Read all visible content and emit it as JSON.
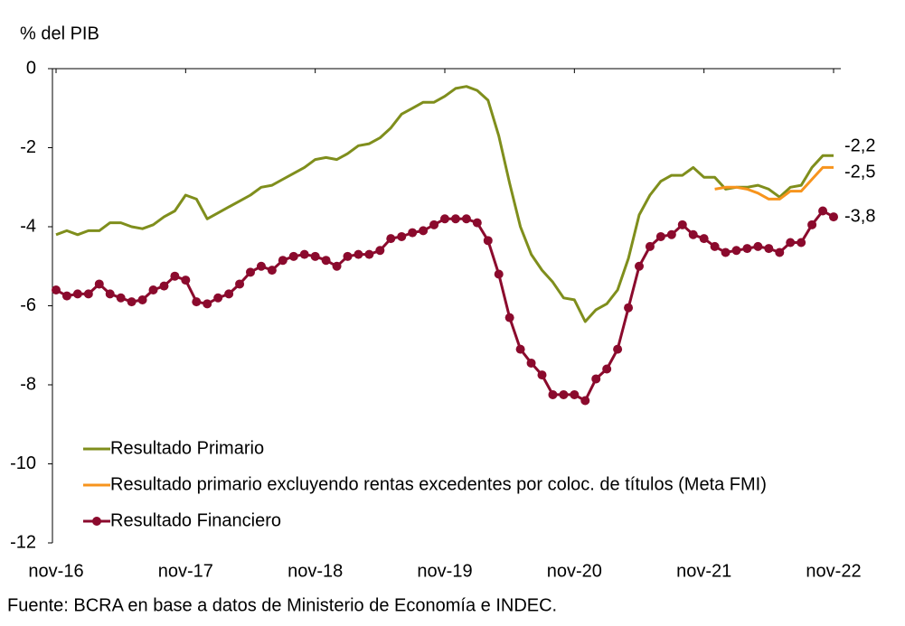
{
  "chart_data": {
    "type": "line",
    "y_label": "% del PIB",
    "source": "Fuente: BCRA en base a datos de Ministerio de Economía e INDEC.",
    "categories": [
      "nov-16",
      null,
      null,
      null,
      null,
      null,
      null,
      null,
      null,
      null,
      null,
      null,
      "nov-17",
      null,
      null,
      null,
      null,
      null,
      null,
      null,
      null,
      null,
      null,
      null,
      "nov-18",
      null,
      null,
      null,
      null,
      null,
      null,
      null,
      null,
      null,
      null,
      null,
      "nov-19",
      null,
      null,
      null,
      null,
      null,
      null,
      null,
      null,
      null,
      null,
      null,
      "nov-20",
      null,
      null,
      null,
      null,
      null,
      null,
      null,
      null,
      null,
      null,
      null,
      "nov-21",
      null,
      null,
      null,
      null,
      null,
      null,
      null,
      null,
      null,
      null,
      null,
      "nov-22"
    ],
    "ylim": [
      -12,
      0
    ],
    "yticks": [
      0,
      -2,
      -4,
      -6,
      -8,
      -10,
      -12
    ],
    "legend": "lower left",
    "series": [
      {
        "name": "Resultado Primario",
        "color": "#7f8e1c",
        "marker": null,
        "values": [
          -4.2,
          -4.1,
          -4.2,
          -4.1,
          -4.1,
          -3.9,
          -3.9,
          -4.0,
          -4.05,
          -3.95,
          -3.75,
          -3.6,
          -3.2,
          -3.3,
          -3.8,
          -3.65,
          -3.5,
          -3.35,
          -3.2,
          -3.0,
          -2.95,
          -2.8,
          -2.65,
          -2.5,
          -2.3,
          -2.25,
          -2.3,
          -2.15,
          -1.95,
          -1.9,
          -1.75,
          -1.5,
          -1.15,
          -1.0,
          -0.85,
          -0.85,
          -0.7,
          -0.5,
          -0.45,
          -0.55,
          -0.8,
          -1.7,
          -2.9,
          -4.0,
          -4.7,
          -5.1,
          -5.4,
          -5.8,
          -5.85,
          -6.4,
          -6.1,
          -5.95,
          -5.6,
          -4.8,
          -3.7,
          -3.2,
          -2.85,
          -2.7,
          -2.7,
          -2.5,
          -2.75,
          -2.75,
          -3.05,
          -3.0,
          -3.0,
          -2.95,
          -3.05,
          -3.25,
          -3.0,
          -2.95,
          -2.5,
          -2.2,
          -2.2
        ],
        "value_labels": [
          null,
          null,
          null,
          null,
          null,
          null,
          null,
          null,
          null,
          null,
          null,
          null,
          null,
          null,
          null,
          null,
          null,
          null,
          null,
          null,
          null,
          null,
          null,
          null,
          null,
          null,
          null,
          null,
          null,
          null,
          null,
          null,
          null,
          null,
          null,
          null,
          null,
          null,
          null,
          null,
          null,
          null,
          null,
          null,
          null,
          null,
          null,
          null,
          null,
          null,
          null,
          null,
          null,
          null,
          null,
          null,
          null,
          null,
          null,
          null,
          null,
          null,
          null,
          null,
          null,
          null,
          null,
          null,
          null,
          null,
          null,
          null,
          "-2,2"
        ]
      },
      {
        "name": "Resultado primario excluyendo rentas excedentes por coloc. de títulos (Meta FMI)",
        "color": "#f7941d",
        "marker": null,
        "values": [
          null,
          null,
          null,
          null,
          null,
          null,
          null,
          null,
          null,
          null,
          null,
          null,
          null,
          null,
          null,
          null,
          null,
          null,
          null,
          null,
          null,
          null,
          null,
          null,
          null,
          null,
          null,
          null,
          null,
          null,
          null,
          null,
          null,
          null,
          null,
          null,
          null,
          null,
          null,
          null,
          null,
          null,
          null,
          null,
          null,
          null,
          null,
          null,
          null,
          null,
          null,
          null,
          null,
          null,
          null,
          null,
          null,
          null,
          null,
          null,
          null,
          -3.05,
          -3.0,
          -3.0,
          -3.05,
          -3.15,
          -3.3,
          -3.3,
          -3.1,
          -3.1,
          -2.8,
          -2.5,
          -2.5
        ],
        "value_labels": [
          null,
          null,
          null,
          null,
          null,
          null,
          null,
          null,
          null,
          null,
          null,
          null,
          null,
          null,
          null,
          null,
          null,
          null,
          null,
          null,
          null,
          null,
          null,
          null,
          null,
          null,
          null,
          null,
          null,
          null,
          null,
          null,
          null,
          null,
          null,
          null,
          null,
          null,
          null,
          null,
          null,
          null,
          null,
          null,
          null,
          null,
          null,
          null,
          null,
          null,
          null,
          null,
          null,
          null,
          null,
          null,
          null,
          null,
          null,
          null,
          null,
          null,
          null,
          null,
          null,
          null,
          null,
          null,
          null,
          null,
          null,
          null,
          "-2,5"
        ]
      },
      {
        "name": "Resultado Financiero",
        "color": "#8b0a2d",
        "marker": "circle",
        "values": [
          -5.6,
          -5.75,
          -5.7,
          -5.7,
          -5.45,
          -5.7,
          -5.8,
          -5.9,
          -5.85,
          -5.6,
          -5.5,
          -5.25,
          -5.35,
          -5.9,
          -5.95,
          -5.8,
          -5.7,
          -5.45,
          -5.15,
          -5.0,
          -5.1,
          -4.85,
          -4.75,
          -4.7,
          -4.75,
          -4.85,
          -5.0,
          -4.75,
          -4.7,
          -4.7,
          -4.6,
          -4.3,
          -4.25,
          -4.15,
          -4.1,
          -3.95,
          -3.8,
          -3.8,
          -3.8,
          -3.9,
          -4.35,
          -5.2,
          -6.3,
          -7.1,
          -7.45,
          -7.75,
          -8.25,
          -8.25,
          -8.25,
          -8.4,
          -7.85,
          -7.6,
          -7.1,
          -6.05,
          -5.0,
          -4.5,
          -4.25,
          -4.2,
          -3.95,
          -4.2,
          -4.3,
          -4.5,
          -4.65,
          -4.6,
          -4.55,
          -4.5,
          -4.55,
          -4.65,
          -4.4,
          -4.4,
          -3.95,
          -3.6,
          -3.75
        ],
        "value_labels": [
          null,
          null,
          null,
          null,
          null,
          null,
          null,
          null,
          null,
          null,
          null,
          null,
          null,
          null,
          null,
          null,
          null,
          null,
          null,
          null,
          null,
          null,
          null,
          null,
          null,
          null,
          null,
          null,
          null,
          null,
          null,
          null,
          null,
          null,
          null,
          null,
          null,
          null,
          null,
          null,
          null,
          null,
          null,
          null,
          null,
          null,
          null,
          null,
          null,
          null,
          null,
          null,
          null,
          null,
          null,
          null,
          null,
          null,
          null,
          null,
          null,
          null,
          null,
          null,
          null,
          null,
          null,
          null,
          null,
          null,
          null,
          null,
          "-3,8"
        ]
      }
    ]
  }
}
